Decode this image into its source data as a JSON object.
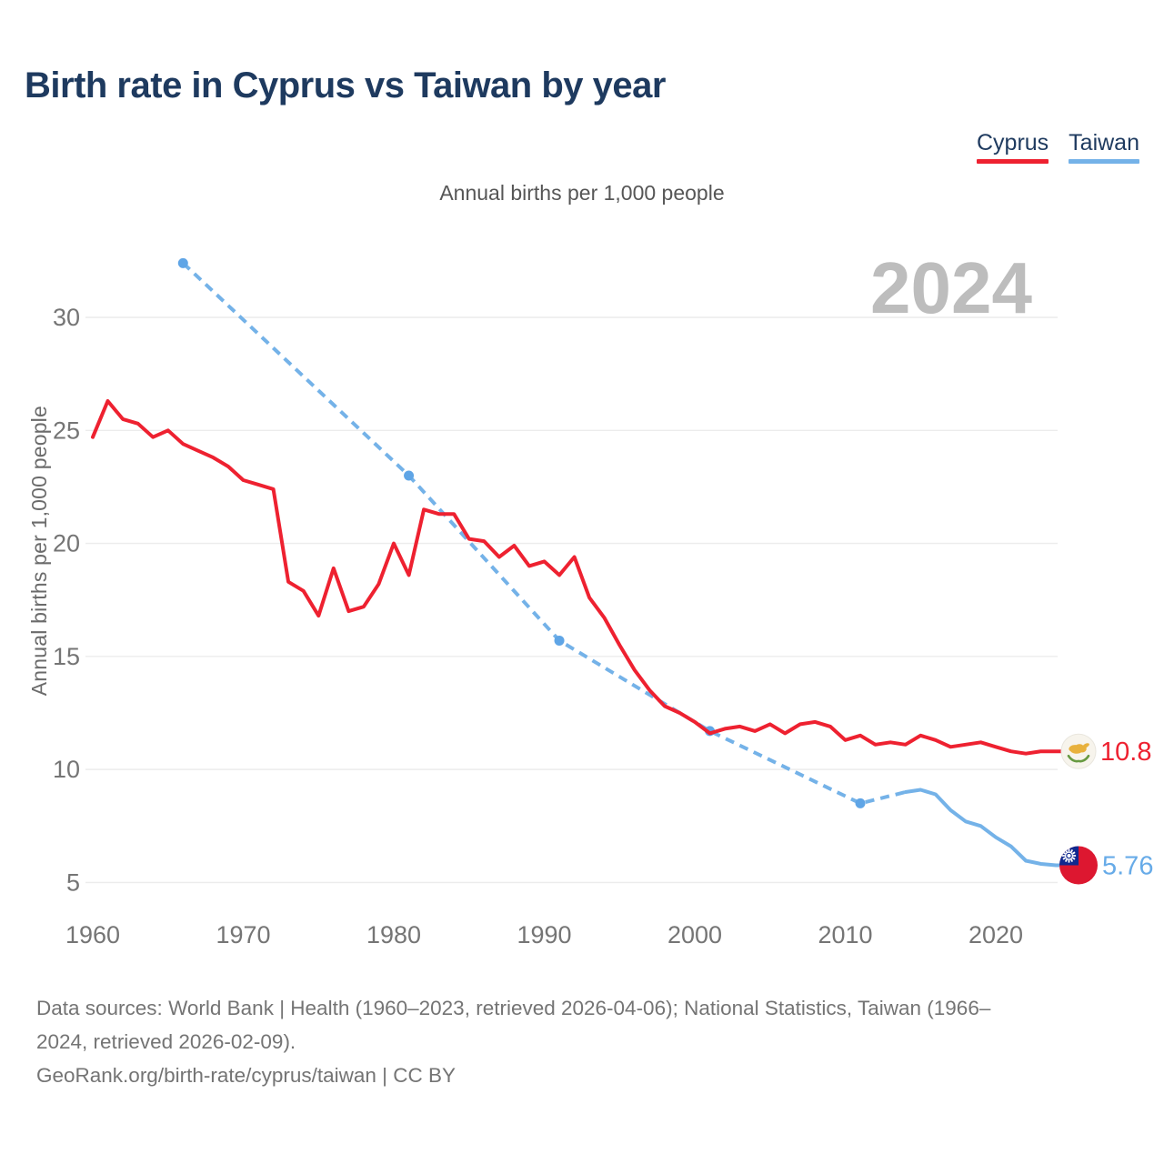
{
  "page": {
    "title": "Birth rate in Cyprus vs Taiwan by year"
  },
  "legend": {
    "items": [
      {
        "label": "Cyprus",
        "color": "#ee2130"
      },
      {
        "label": "Taiwan",
        "color": "#74b2e8"
      }
    ]
  },
  "subtitle": "Annual births per 1,000 people",
  "watermark": "2024",
  "axis": {
    "y_title": "Annual births per 1,000 people",
    "y_ticks": [
      5,
      10,
      15,
      20,
      25,
      30
    ],
    "x_ticks": [
      1960,
      1970,
      1980,
      1990,
      2000,
      2010,
      2020
    ]
  },
  "chart_data": {
    "type": "line",
    "title": "Birth rate in Cyprus vs Taiwan by year",
    "subtitle": "Annual births per 1,000 people",
    "ylabel": "Annual births per 1,000 people",
    "xlim": [
      1958.5,
      2031
    ],
    "ylim": [
      3.5,
      33.5
    ],
    "grid": "horizontal",
    "legend_position": "top-right",
    "colors": {
      "cyprus_red": "#ee2130",
      "taiwan_blue": "#74b2e8",
      "marker_blue": "#5fa5e6",
      "grid": "#ececec",
      "tick_text": "#757575",
      "watermark_gray": "#bdbdbd",
      "title_navy": "#1e3a5f"
    },
    "series": [
      {
        "name": "Cyprus",
        "color": "#ee2130",
        "line_style": "solid",
        "start_year": 1960,
        "end_year": 2023,
        "values": [
          24.7,
          26.3,
          25.5,
          25.3,
          24.7,
          25.0,
          24.4,
          24.1,
          23.8,
          23.4,
          22.8,
          22.6,
          22.4,
          18.3,
          17.9,
          16.8,
          18.9,
          17.0,
          17.2,
          18.2,
          20.0,
          18.6,
          21.5,
          21.3,
          21.3,
          20.2,
          20.1,
          19.4,
          19.9,
          19.0,
          19.2,
          18.6,
          19.4,
          17.6,
          16.7,
          15.5,
          14.4,
          13.5,
          12.8,
          12.5,
          12.1,
          11.6,
          11.8,
          11.9,
          11.7,
          12.0,
          11.6,
          12.0,
          12.1,
          11.9,
          11.3,
          11.5,
          11.1,
          11.2,
          11.1,
          11.5,
          11.3,
          11.0,
          11.1,
          11.2,
          11.0,
          10.8,
          10.7,
          10.8
        ],
        "end_label": "10.8",
        "end_flag": "cyprus"
      },
      {
        "name": "Taiwan",
        "color": "#74b2e8",
        "line_style": "dashed-sparse-then-solid",
        "dashed_points": [
          [
            1966,
            32.4
          ],
          [
            1981,
            23.0
          ],
          [
            1991,
            15.7
          ],
          [
            2001,
            11.7
          ],
          [
            2011,
            8.5
          ],
          [
            2014,
            9.0
          ]
        ],
        "marker_points": [
          [
            1966,
            32.4
          ],
          [
            1981,
            23.0
          ],
          [
            1991,
            15.7
          ],
          [
            2001,
            11.7
          ],
          [
            2011,
            8.5
          ]
        ],
        "solid_points": [
          [
            2014,
            9.0
          ],
          [
            2015,
            9.1
          ],
          [
            2016,
            8.9
          ],
          [
            2017,
            8.2
          ],
          [
            2018,
            7.7
          ],
          [
            2019,
            7.5
          ],
          [
            2020,
            7.0
          ],
          [
            2021,
            6.6
          ],
          [
            2022,
            5.96
          ],
          [
            2023,
            5.82
          ],
          [
            2024,
            5.76
          ]
        ],
        "end_label": "5.76",
        "end_flag": "taiwan"
      }
    ]
  },
  "footer": {
    "lines": [
      "Data sources: World Bank | Health (1960–2023, retrieved 2026-04-06); National Statistics, Taiwan (1966–",
      "2024, retrieved 2026-02-09).",
      "GeoRank.org/birth-rate/cyprus/taiwan | CC BY"
    ]
  }
}
